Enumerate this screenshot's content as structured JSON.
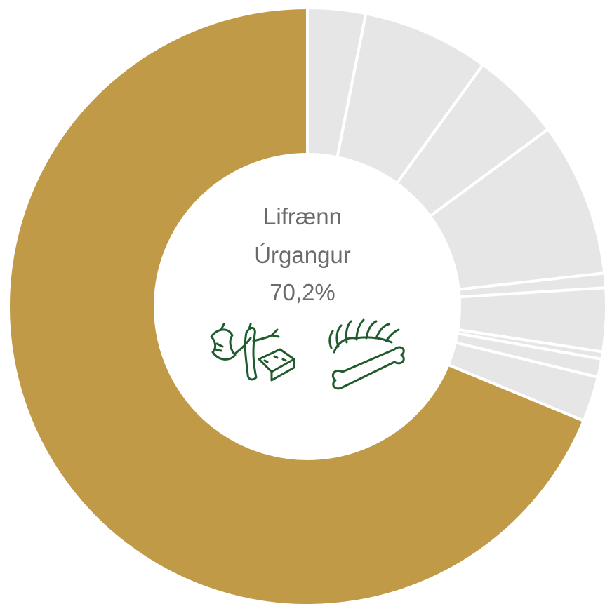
{
  "chart_data": {
    "type": "pie",
    "style": "donut",
    "highlight_color": "#c19a47",
    "other_color": "#e6e6e6",
    "divider_color": "#ffffff",
    "slices": [
      {
        "value": 3.2,
        "highlight": false
      },
      {
        "value": 7.0,
        "highlight": false
      },
      {
        "value": 5.0,
        "highlight": false
      },
      {
        "value": 8.5,
        "highlight": false
      },
      {
        "value": 0.8,
        "highlight": false
      },
      {
        "value": 3.5,
        "highlight": false
      },
      {
        "value": 0.4,
        "highlight": false
      },
      {
        "value": 1.0,
        "highlight": false
      },
      {
        "value": 2.5,
        "highlight": false
      },
      {
        "value": 70.2,
        "highlight": true
      }
    ],
    "center_label": {
      "line1": "Lifrænn",
      "line2": "Úrgangur",
      "value": "70,2%"
    }
  },
  "icons": {
    "left": "food-scraps-icon",
    "right": "bones-icon",
    "color": "#1f5b2c"
  }
}
